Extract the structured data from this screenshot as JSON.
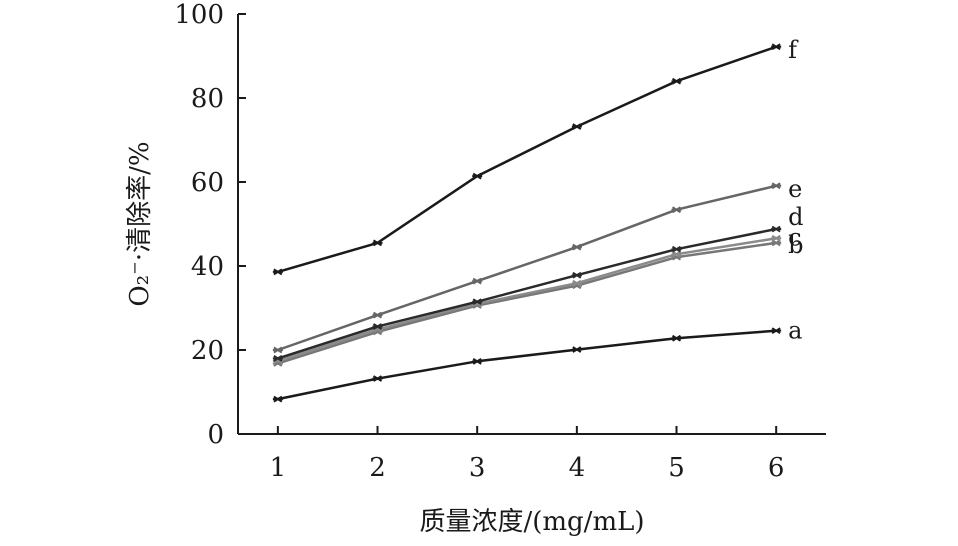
{
  "chart_data": {
    "type": "line",
    "xlabel": "质量浓度/(mg/mL)",
    "ylabel": "O₂⁻·清除率/%",
    "x": [
      1,
      2,
      3,
      4,
      5,
      6
    ],
    "xlim": [
      0.6,
      6.5
    ],
    "ylim": [
      0,
      100
    ],
    "xticks": [
      "1",
      "2",
      "3",
      "4",
      "5",
      "6"
    ],
    "yticks": [
      "0",
      "20",
      "40",
      "60",
      "80",
      "100"
    ],
    "grid": false,
    "legend": "none",
    "series": [
      {
        "name": "a",
        "values": [
          8.3,
          13.2,
          17.3,
          20.1,
          22.8,
          24.6
        ],
        "color": "#1a1a1a"
      },
      {
        "name": "b",
        "values": [
          16.8,
          24.3,
          30.6,
          35.3,
          42.1,
          45.5
        ],
        "color": "#777777"
      },
      {
        "name": "c",
        "values": [
          17.4,
          24.9,
          31.0,
          35.9,
          42.8,
          46.6
        ],
        "color": "#8a8a8a"
      },
      {
        "name": "d",
        "values": [
          18.0,
          25.6,
          31.5,
          37.8,
          44.0,
          48.8
        ],
        "color": "#2a2a2a"
      },
      {
        "name": "e",
        "values": [
          20.0,
          28.3,
          36.4,
          44.5,
          53.4,
          59.1
        ],
        "color": "#666666"
      },
      {
        "name": "f",
        "values": [
          38.6,
          45.5,
          61.4,
          73.2,
          84.0,
          92.2
        ],
        "color": "#1a1a1a"
      }
    ]
  }
}
